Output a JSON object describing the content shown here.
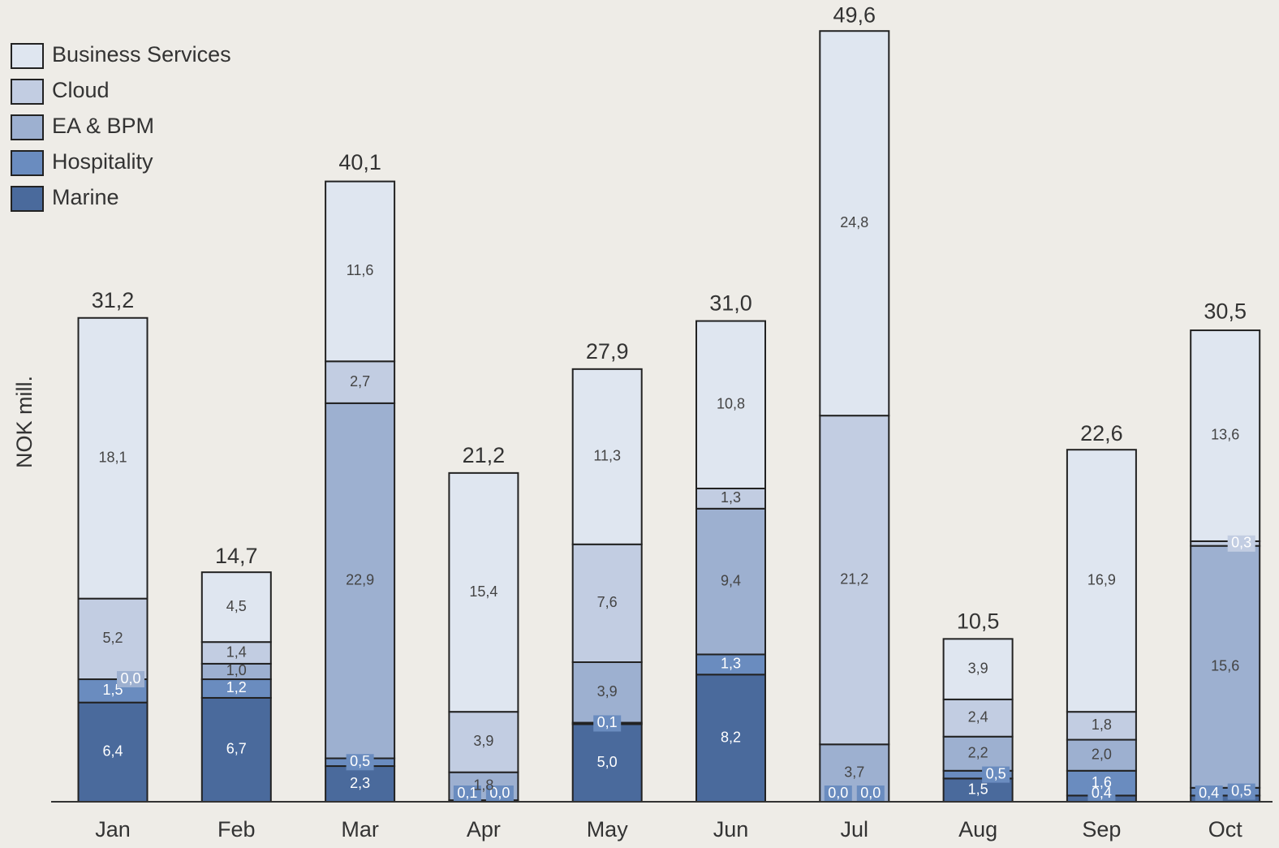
{
  "chart_data": {
    "type": "stacked_bar",
    "y_label": "NOK mill.",
    "categories": [
      "Jan",
      "Feb",
      "Mar",
      "Apr",
      "May",
      "Jun",
      "Jul",
      "Aug",
      "Sep",
      "Oct"
    ],
    "series": [
      {
        "name": "Marine",
        "color": "#4a6a9c",
        "values": [
          6.4,
          6.7,
          2.3,
          0.1,
          5.0,
          8.2,
          0.0,
          1.5,
          0.4,
          0.4
        ],
        "value_labels": [
          "6,4",
          "6,7",
          "2,3",
          "0,1",
          "5,0",
          "8,2",
          "0,0",
          "1,5",
          "0,4",
          "0,4"
        ]
      },
      {
        "name": "Hospitality",
        "color": "#6a8cbf",
        "values": [
          1.5,
          1.2,
          0.5,
          0.0,
          0.1,
          1.3,
          0.0,
          0.5,
          1.6,
          0.5
        ],
        "value_labels": [
          "1,5",
          "1,2",
          "0,5",
          "0,0",
          "0,1",
          "1,3",
          "0,0",
          "0,5",
          "1,6",
          "0,5"
        ]
      },
      {
        "name": "EA & BPM",
        "color": "#9db0d0",
        "values": [
          0.0,
          1.0,
          22.9,
          1.8,
          3.9,
          9.4,
          3.7,
          2.2,
          2.0,
          15.6
        ],
        "value_labels": [
          "0,0",
          "1,0",
          "22,9",
          "1,8",
          "3,9",
          "9,4",
          "3,7",
          "2,2",
          "2,0",
          "15,6"
        ]
      },
      {
        "name": "Cloud",
        "color": "#c2cde2",
        "values": [
          5.2,
          1.4,
          2.7,
          3.9,
          7.6,
          1.3,
          21.2,
          2.4,
          1.8,
          0.3
        ],
        "value_labels": [
          "5,2",
          "1,4",
          "2,7",
          "3,9",
          "7,6",
          "1,3",
          "21,2",
          "2,4",
          "1,8",
          "0,3"
        ]
      },
      {
        "name": "Business Services",
        "color": "#dfe6f0",
        "values": [
          18.1,
          4.5,
          11.6,
          15.4,
          11.3,
          10.8,
          24.8,
          3.9,
          16.9,
          13.6
        ],
        "value_labels": [
          "18,1",
          "4,5",
          "11,6",
          "15,4",
          "11,3",
          "10,8",
          "24,8",
          "3,9",
          "16,9",
          "13,6"
        ]
      }
    ],
    "totals": [
      31.2,
      14.7,
      40.1,
      21.2,
      27.9,
      31.0,
      49.6,
      10.5,
      22.6,
      30.5
    ],
    "total_labels": [
      "31,2",
      "14,7",
      "40,1",
      "21,2",
      "27,9",
      "31,0",
      "49,6",
      "10,5",
      "22,6",
      "30,5"
    ],
    "ylim": [
      0,
      51.7
    ]
  }
}
